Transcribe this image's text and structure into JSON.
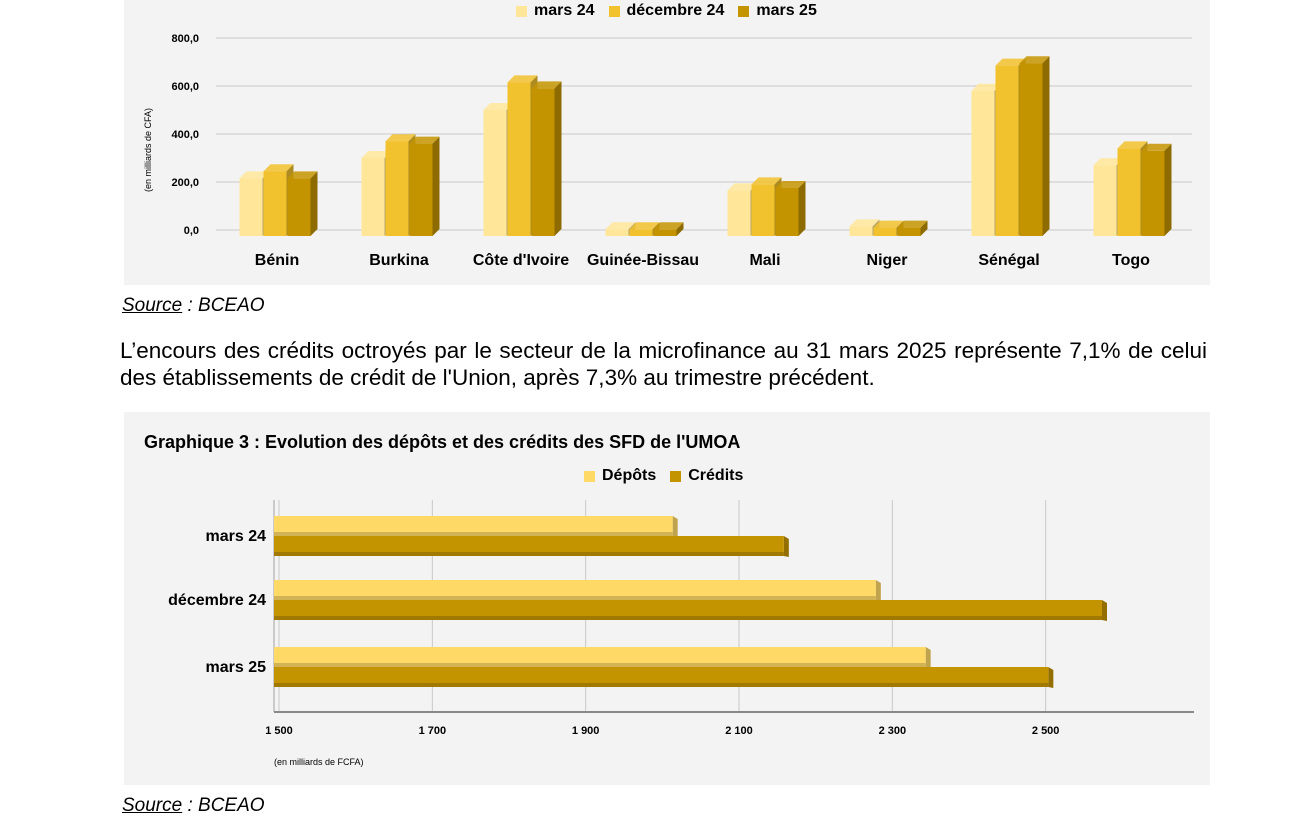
{
  "chart_data": [
    {
      "type": "bar",
      "orientation": "vertical",
      "title": "",
      "ylabel": "(en milliards de CFA)",
      "ylim": [
        0,
        800
      ],
      "yticks": [
        "0,0",
        "200,0",
        "400,0",
        "600,0",
        "800,0"
      ],
      "categories": [
        "Bénin",
        "Burkina",
        "Côte d'Ivoire",
        "Guinée-Bissau",
        "Mali",
        "Niger",
        "Sénégal",
        "Togo"
      ],
      "series": [
        {
          "name": "mars 24",
          "color": "#FFE699",
          "values": [
            215,
            300,
            500,
            3,
            165,
            15,
            580,
            270
          ]
        },
        {
          "name": "décembre 24",
          "color": "#F2C12E",
          "values": [
            245,
            370,
            615,
            3,
            190,
            10,
            685,
            340
          ]
        },
        {
          "name": "mars 25",
          "color": "#C49400",
          "values": [
            215,
            360,
            590,
            3,
            175,
            10,
            695,
            330
          ]
        }
      ],
      "grid": true,
      "legend_position": "top"
    },
    {
      "type": "bar",
      "orientation": "horizontal",
      "title": "Graphique 3 : Evolution des dépôts et des crédits des SFD de l'UMOA",
      "xlabel": "(en milliards de FCFA)",
      "xlim": [
        1500,
        2700
      ],
      "xticks": [
        "1 500",
        "1 700",
        "1 900",
        "2 100",
        "2 300",
        "2 500"
      ],
      "categories": [
        "mars 24",
        "décembre 24",
        "mars 25"
      ],
      "series": [
        {
          "name": "Dépôts",
          "color": "#FFD966",
          "values": [
            2020,
            2285,
            2350
          ]
        },
        {
          "name": "Crédits",
          "color": "#C49400",
          "values": [
            2165,
            2580,
            2510
          ]
        }
      ],
      "grid": true,
      "legend_position": "top"
    }
  ],
  "text": {
    "source_label": "Source",
    "source_value": " : BCEAO",
    "paragraph": "L’encours des crédits octroyés par le secteur de la microfinance au 31 mars 2025 représente 7,1% de celui des établissements de crédit de l'Union, après 7,3% au trimestre précédent."
  }
}
